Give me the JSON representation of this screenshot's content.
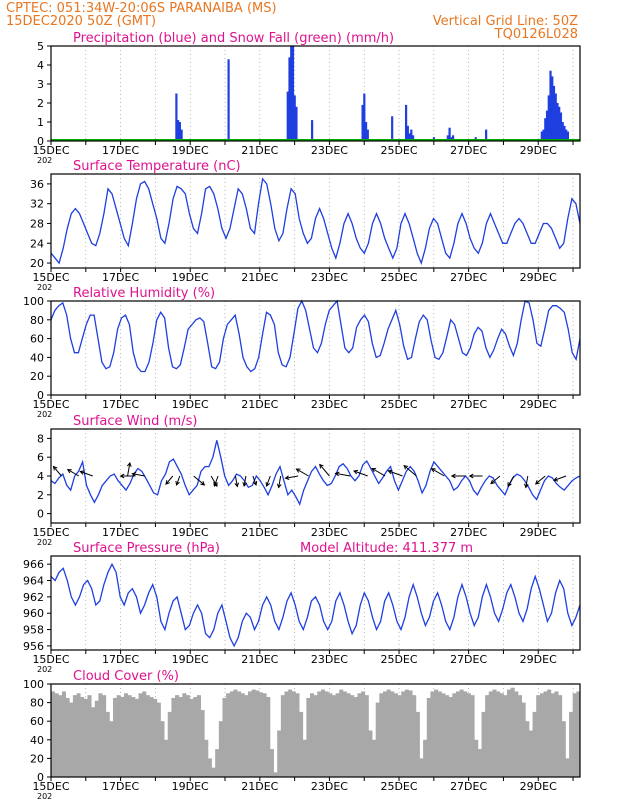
{
  "header": {
    "station_line": "CPTEC:   051:34W-20:06S   PARANAIBA (MS)",
    "date_line": "15DEC2020 50Z (GMT)",
    "grid_note": "Vertical Grid Line: 50Z",
    "run_id": "TQ0126L028"
  },
  "colors": {
    "header_text": "#e87722",
    "title_text": "#e0128e",
    "series_line": "#1f3fe0",
    "precip_bar": "#1f3fe0",
    "snow_line": "#00aa00",
    "cloud_fill": "#a8a8a8",
    "arrow": "#000000"
  },
  "chart_data": [
    {
      "type": "bar",
      "title": "Precipitation (blue) and Snow Fall (green) (mm/h)",
      "ylim": [
        0,
        5
      ],
      "yticks": [
        0,
        1,
        2,
        3,
        4,
        5
      ],
      "x_range": [
        0,
        15.2
      ],
      "xticks": [
        "15DEC",
        "17DEC",
        "19DEC",
        "21DEC",
        "23DEC",
        "25DEC",
        "27DEC",
        "29DEC"
      ],
      "year_label": "202",
      "series": [
        {
          "name": "Precipitation",
          "x": [
            3.6,
            3.65,
            3.7,
            3.75,
            5.1,
            6.8,
            6.85,
            6.9,
            6.95,
            7.0,
            7.05,
            7.5,
            8.95,
            9.0,
            9.05,
            9.1,
            9.8,
            10.2,
            10.25,
            10.3,
            10.35,
            10.4,
            11.0,
            11.4,
            11.45,
            11.5,
            11.55,
            12.2,
            12.5,
            14.1,
            14.15,
            14.2,
            14.25,
            14.3,
            14.35,
            14.4,
            14.45,
            14.5,
            14.55,
            14.6,
            14.65,
            14.7,
            14.75,
            14.8,
            14.85
          ],
          "values": [
            2.5,
            1.1,
            1.0,
            0.6,
            4.3,
            2.6,
            4.4,
            5.0,
            5.0,
            2.4,
            1.8,
            1.1,
            1.9,
            2.5,
            1.0,
            0.6,
            1.3,
            1.9,
            0.8,
            0.4,
            0.6,
            0.3,
            0.2,
            0.3,
            0.7,
            0.2,
            0.3,
            0.2,
            0.6,
            0.5,
            0.6,
            1.2,
            1.6,
            2.4,
            3.7,
            3.4,
            2.9,
            2.5,
            2.0,
            1.8,
            1.5,
            1.0,
            0.8,
            0.6,
            0.5
          ]
        },
        {
          "name": "Snow Fall",
          "values": [
            0
          ]
        }
      ]
    },
    {
      "type": "line",
      "title": "Surface Temperature (nC)",
      "ylim": [
        19,
        38
      ],
      "yticks": [
        20,
        24,
        28,
        32,
        36
      ],
      "x_range": [
        0,
        15.2
      ],
      "xticks": [
        "15DEC",
        "17DEC",
        "19DEC",
        "21DEC",
        "23DEC",
        "25DEC",
        "27DEC",
        "29DEC"
      ],
      "year_label": "202",
      "values": [
        22,
        21,
        20,
        23,
        27,
        30,
        31,
        30,
        28,
        26,
        24,
        23.5,
        26,
        30,
        35,
        34,
        31,
        28,
        25,
        23.5,
        28,
        33,
        36,
        36.5,
        35,
        32,
        29,
        25,
        24,
        28,
        33,
        35.5,
        35,
        34,
        30,
        27,
        26,
        30,
        35,
        35.5,
        34,
        31,
        27,
        25,
        27,
        31,
        35,
        34,
        31,
        27,
        26,
        32,
        37,
        36,
        32,
        27,
        24.5,
        26,
        31,
        35,
        34,
        29,
        26,
        24,
        25,
        29,
        31,
        29,
        26,
        23,
        21,
        24,
        28,
        30,
        28,
        25,
        23,
        22,
        24,
        28,
        30,
        28,
        25,
        23,
        21,
        23,
        28,
        30,
        28,
        25,
        22,
        20,
        23,
        27,
        29,
        28,
        25,
        22,
        21,
        24,
        28,
        30,
        28,
        25,
        23,
        22,
        24,
        28,
        30,
        28,
        26,
        24,
        24,
        26,
        28,
        29,
        28,
        26,
        24,
        24,
        26,
        28,
        28,
        27,
        25,
        23,
        24,
        29,
        33,
        32,
        28
      ]
    },
    {
      "type": "line",
      "title": "Relative Humidity (%)",
      "ylim": [
        0,
        100
      ],
      "yticks": [
        0,
        20,
        40,
        60,
        80,
        100
      ],
      "x_range": [
        0,
        15.2
      ],
      "xticks": [
        "15DEC",
        "17DEC",
        "19DEC",
        "21DEC",
        "23DEC",
        "25DEC",
        "27DEC",
        "29DEC"
      ],
      "year_label": "202",
      "values": [
        80,
        90,
        95,
        98,
        85,
        60,
        45,
        45,
        60,
        75,
        85,
        85,
        60,
        35,
        28,
        30,
        45,
        70,
        82,
        85,
        75,
        45,
        30,
        25,
        25,
        35,
        55,
        80,
        88,
        82,
        50,
        30,
        28,
        32,
        50,
        70,
        75,
        80,
        82,
        78,
        55,
        30,
        28,
        35,
        60,
        75,
        80,
        85,
        65,
        40,
        30,
        25,
        28,
        40,
        65,
        88,
        85,
        75,
        45,
        32,
        30,
        40,
        65,
        92,
        100,
        90,
        70,
        50,
        45,
        55,
        75,
        90,
        95,
        100,
        75,
        50,
        45,
        50,
        72,
        80,
        85,
        78,
        55,
        40,
        42,
        55,
        70,
        80,
        90,
        75,
        52,
        38,
        40,
        60,
        78,
        85,
        80,
        58,
        40,
        38,
        45,
        62,
        80,
        75,
        60,
        45,
        42,
        50,
        65,
        72,
        68,
        50,
        40,
        48,
        60,
        70,
        65,
        52,
        42,
        55,
        80,
        100,
        98,
        80,
        55,
        52,
        70,
        90,
        95,
        95,
        92,
        88,
        70,
        45,
        38,
        60
      ]
    },
    {
      "type": "line",
      "title": "Surface Wind (m/s)",
      "ylim": [
        -1,
        9
      ],
      "yticks": [
        0,
        2,
        4,
        6,
        8
      ],
      "x_range": [
        0,
        15.2
      ],
      "xticks": [
        "15DEC",
        "17DEC",
        "19DEC",
        "21DEC",
        "23DEC",
        "25DEC",
        "27DEC",
        "29DEC"
      ],
      "year_label": "202",
      "values": [
        3.5,
        3.2,
        3.8,
        4.2,
        3.0,
        2.5,
        4.0,
        4.5,
        5.5,
        3.0,
        2.0,
        1.2,
        2.0,
        3.0,
        3.5,
        4.0,
        4.2,
        3.5,
        3.0,
        2.5,
        3.2,
        4.2,
        4.8,
        4.5,
        3.8,
        3.0,
        2.2,
        2.0,
        3.5,
        4.2,
        5.5,
        5.8,
        5.0,
        4.2,
        3.0,
        2.0,
        2.5,
        3.0,
        4.5,
        5.0,
        5.0,
        6.0,
        7.8,
        6.0,
        4.0,
        3.0,
        3.5,
        4.2,
        4.0,
        3.5,
        2.8,
        3.0,
        4.0,
        3.5,
        2.8,
        2.0,
        3.0,
        4.2,
        5.0,
        3.5,
        2.0,
        2.5,
        1.8,
        1.0,
        2.5,
        3.5,
        4.5,
        5.0,
        4.2,
        3.5,
        3.0,
        3.2,
        4.0,
        5.0,
        5.3,
        4.8,
        4.0,
        3.5,
        4.0,
        5.2,
        5.6,
        4.8,
        4.0,
        3.2,
        3.8,
        4.5,
        5.0,
        3.5,
        2.5,
        3.5,
        4.5,
        5.0,
        4.5,
        3.5,
        2.2,
        3.0,
        4.5,
        5.5,
        5.0,
        4.5,
        4.0,
        3.5,
        2.5,
        2.8,
        3.5,
        4.0,
        3.5,
        2.5,
        2.0,
        2.8,
        3.5,
        4.0,
        3.8,
        3.0,
        2.5,
        2.0,
        3.0,
        3.8,
        4.2,
        4.0,
        3.5,
        2.8,
        2.0,
        1.5,
        2.5,
        3.5,
        4.0,
        3.8,
        3.2,
        2.8,
        2.5,
        3.0,
        3.5,
        3.8,
        4.0
      ]
    },
    {
      "type": "line",
      "title": "Surface Pressure (hPa)",
      "annotation": "Model Altitude: 411.377 m",
      "ylim": [
        955.5,
        967
      ],
      "yticks": [
        956,
        958,
        960,
        962,
        964,
        966
      ],
      "x_range": [
        0,
        15.2
      ],
      "xticks": [
        "15DEC",
        "17DEC",
        "19DEC",
        "21DEC",
        "23DEC",
        "25DEC",
        "27DEC",
        "29DEC"
      ],
      "year_label": "202",
      "values": [
        964.5,
        964.0,
        965.0,
        965.5,
        964.0,
        962.0,
        961.0,
        962.0,
        963.5,
        964.0,
        963.0,
        961.0,
        961.5,
        963.5,
        965.0,
        966.0,
        965.0,
        962.0,
        961.0,
        962.5,
        963.0,
        962.0,
        960.0,
        961.0,
        962.5,
        963.5,
        962.0,
        959.0,
        958.0,
        960.0,
        961.5,
        962.0,
        960.0,
        958.0,
        958.5,
        960.0,
        961.0,
        960.0,
        957.5,
        957.0,
        958.0,
        960.0,
        961.0,
        959.0,
        957.0,
        956.0,
        957.0,
        959.0,
        960.0,
        959.5,
        958.0,
        959.0,
        961.0,
        962.0,
        961.0,
        959.0,
        958.0,
        959.5,
        961.5,
        962.5,
        961.0,
        959.0,
        958.0,
        959.5,
        961.5,
        962.0,
        961.0,
        959.0,
        958.0,
        959.0,
        961.5,
        962.5,
        961.0,
        959.0,
        957.5,
        958.5,
        961.0,
        962.5,
        961.5,
        959.5,
        958.0,
        959.0,
        961.5,
        962.5,
        961.0,
        959.0,
        958.0,
        959.5,
        962.0,
        963.5,
        962.0,
        960.0,
        958.5,
        959.5,
        961.5,
        962.5,
        961.0,
        959.0,
        958.0,
        959.5,
        962.0,
        963.5,
        962.0,
        960.0,
        958.5,
        959.5,
        962.0,
        963.5,
        962.0,
        960.0,
        959.0,
        960.5,
        962.5,
        963.5,
        962.0,
        960.0,
        959.0,
        960.5,
        963.0,
        964.5,
        963.0,
        961.0,
        959.0,
        960.0,
        962.5,
        964.0,
        963.0,
        960.0,
        958.5,
        959.5,
        961.0
      ]
    },
    {
      "type": "area",
      "title": "Cloud Cover (%)",
      "ylim": [
        0,
        100
      ],
      "yticks": [
        0,
        20,
        40,
        60,
        80,
        100
      ],
      "x_range": [
        0,
        15.2
      ],
      "xticks": [
        "15DEC",
        "17DEC",
        "19DEC",
        "21DEC",
        "23DEC",
        "25DEC",
        "27DEC",
        "29DEC"
      ],
      "year_label": "202",
      "values": [
        92,
        90,
        88,
        92,
        85,
        80,
        88,
        90,
        86,
        84,
        88,
        75,
        82,
        90,
        88,
        70,
        60,
        85,
        88,
        86,
        90,
        88,
        86,
        84,
        90,
        92,
        88,
        86,
        84,
        80,
        60,
        40,
        70,
        85,
        88,
        86,
        90,
        88,
        84,
        86,
        88,
        72,
        40,
        20,
        10,
        30,
        60,
        85,
        90,
        92,
        94,
        92,
        90,
        88,
        92,
        94,
        93,
        91,
        90,
        86,
        30,
        5,
        50,
        88,
        92,
        94,
        92,
        90,
        70,
        40,
        85,
        90,
        88,
        92,
        94,
        92,
        90,
        88,
        90,
        94,
        92,
        90,
        88,
        86,
        90,
        92,
        88,
        50,
        40,
        80,
        90,
        92,
        94,
        92,
        90,
        88,
        92,
        94,
        93,
        88,
        70,
        20,
        40,
        85,
        92,
        94,
        92,
        90,
        88,
        86,
        90,
        92,
        94,
        92,
        90,
        88,
        40,
        30,
        70,
        88,
        92,
        94,
        92,
        90,
        88,
        94,
        96,
        92,
        88,
        80,
        60,
        50,
        70,
        88,
        90,
        92,
        94,
        90,
        92,
        88,
        60,
        20,
        70,
        90,
        92
      ]
    }
  ],
  "wind_arrows": [
    {
      "x": 0.3,
      "speed": 3.8,
      "dir": 320
    },
    {
      "x": 0.8,
      "speed": 4.0,
      "dir": 300
    },
    {
      "x": 1.2,
      "speed": 4.2,
      "dir": 290
    },
    {
      "x": 2.2,
      "speed": 4.2,
      "dir": 10
    },
    {
      "x": 2.4,
      "speed": 4.5,
      "dir": 270
    },
    {
      "x": 2.7,
      "speed": 4.0,
      "dir": 280
    },
    {
      "x": 3.5,
      "speed": 3.0,
      "dir": 220
    },
    {
      "x": 3.7,
      "speed": 2.5,
      "dir": 200
    },
    {
      "x": 4.1,
      "speed": 4.5,
      "dir": 130
    },
    {
      "x": 4.6,
      "speed": 3.5,
      "dir": 150
    },
    {
      "x": 4.8,
      "speed": 3.0,
      "dir": 200
    },
    {
      "x": 5.3,
      "speed": 3.0,
      "dir": 170
    },
    {
      "x": 5.6,
      "speed": 2.8,
      "dir": 190
    },
    {
      "x": 5.8,
      "speed": 2.5,
      "dir": 160
    },
    {
      "x": 6.3,
      "speed": 3.0,
      "dir": 200
    },
    {
      "x": 6.6,
      "speed": 3.5,
      "dir": 190
    },
    {
      "x": 7.1,
      "speed": 4.0,
      "dir": 260
    },
    {
      "x": 7.4,
      "speed": 4.5,
      "dir": 300
    },
    {
      "x": 8.0,
      "speed": 5.0,
      "dir": 320
    },
    {
      "x": 8.6,
      "speed": 5.0,
      "dir": 280
    },
    {
      "x": 9.1,
      "speed": 4.8,
      "dir": 290
    },
    {
      "x": 9.6,
      "speed": 5.0,
      "dir": 300
    },
    {
      "x": 10.1,
      "speed": 5.0,
      "dir": 290
    },
    {
      "x": 10.5,
      "speed": 5.5,
      "dir": 310
    },
    {
      "x": 11.3,
      "speed": 4.8,
      "dir": 300
    },
    {
      "x": 11.9,
      "speed": 4.2,
      "dir": 270
    },
    {
      "x": 12.4,
      "speed": 4.0,
      "dir": 270
    },
    {
      "x": 12.9,
      "speed": 3.5,
      "dir": 230
    },
    {
      "x": 13.3,
      "speed": 3.5,
      "dir": 210
    },
    {
      "x": 13.7,
      "speed": 3.5,
      "dir": 190
    },
    {
      "x": 14.2,
      "speed": 3.8,
      "dir": 230
    },
    {
      "x": 14.8,
      "speed": 4.0,
      "dir": 250
    }
  ]
}
